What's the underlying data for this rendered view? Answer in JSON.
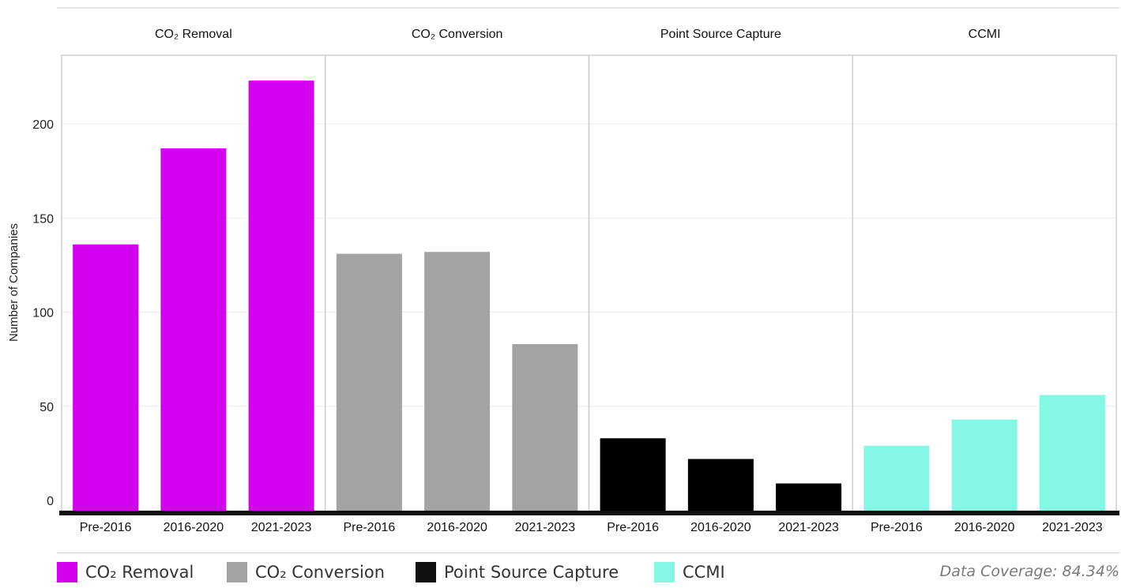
{
  "chart_data": {
    "type": "bar",
    "ylabel": "Number of Companies",
    "ylim": [
      0,
      230
    ],
    "yticks": [
      "0",
      "50",
      "100",
      "150",
      "200"
    ],
    "grid": true,
    "categories": [
      "Pre-2016",
      "2016-2020",
      "2021-2023"
    ],
    "panels": [
      {
        "title": "CO₂ Removal",
        "color": "#d600f0",
        "values": [
          136,
          187,
          223
        ]
      },
      {
        "title": "CO₂ Conversion",
        "color": "#a3a3a3",
        "values": [
          131,
          132,
          83
        ]
      },
      {
        "title": "Point Source Capture",
        "color": "#000000",
        "values": [
          33,
          22,
          9
        ]
      },
      {
        "title": "CCMI",
        "color": "#84f7e5",
        "values": [
          29,
          43,
          56
        ]
      }
    ],
    "legend": [
      {
        "label": "CO₂ Removal",
        "color": "#d600f0"
      },
      {
        "label": "CO₂ Conversion",
        "color": "#a3a3a3"
      },
      {
        "label": "Point Source Capture",
        "color": "#111111"
      },
      {
        "label": "CCMI",
        "color": "#84f7e5"
      }
    ],
    "coverage_text": "Data Coverage: 84.34%"
  }
}
